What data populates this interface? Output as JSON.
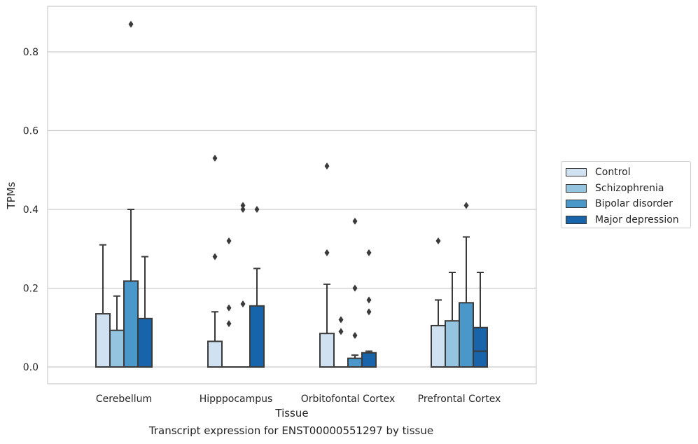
{
  "caption": "Transcript expression for ENST00000551297 by tissue",
  "chart_data": {
    "type": "box",
    "xlabel": "Tissue",
    "ylabel": "TPMs",
    "ylim": [
      -0.04,
      0.92
    ],
    "yticks": [
      0.0,
      0.2,
      0.4,
      0.6,
      0.8
    ],
    "ytick_labels": [
      "0.0",
      "0.2",
      "0.4",
      "0.6",
      "0.8"
    ],
    "grid": "horizontal",
    "legend_position": "right",
    "categories": [
      "Cerebellum",
      "Hipppocampus",
      "Orbitofontal Cortex",
      "Prefrontal Cortex"
    ],
    "series": [
      {
        "name": "Control",
        "color": "#d0e1f2",
        "boxes": [
          {
            "q1": 0.0,
            "median": 0.0,
            "q3": 0.135,
            "whisker_low": 0.0,
            "whisker_high": 0.31,
            "outliers": []
          },
          {
            "q1": 0.0,
            "median": 0.0,
            "q3": 0.065,
            "whisker_low": 0.0,
            "whisker_high": 0.14,
            "outliers": [
              0.28,
              0.53
            ]
          },
          {
            "q1": 0.0,
            "median": 0.0,
            "q3": 0.085,
            "whisker_low": 0.0,
            "whisker_high": 0.21,
            "outliers": [
              0.29,
              0.51
            ]
          },
          {
            "q1": 0.0,
            "median": 0.0,
            "q3": 0.105,
            "whisker_low": 0.0,
            "whisker_high": 0.17,
            "outliers": [
              0.32
            ]
          }
        ]
      },
      {
        "name": "Schizophrenia",
        "color": "#94c4df",
        "boxes": [
          {
            "q1": 0.0,
            "median": 0.0,
            "q3": 0.093,
            "whisker_low": 0.0,
            "whisker_high": 0.18,
            "outliers": []
          },
          {
            "q1": 0.0,
            "median": 0.0,
            "q3": 0.0,
            "whisker_low": 0.0,
            "whisker_high": 0.0,
            "outliers": [
              0.11,
              0.15,
              0.32
            ]
          },
          {
            "q1": 0.0,
            "median": 0.0,
            "q3": 0.0,
            "whisker_low": 0.0,
            "whisker_high": 0.0,
            "outliers": [
              0.09,
              0.12
            ]
          },
          {
            "q1": 0.0,
            "median": 0.0,
            "q3": 0.117,
            "whisker_low": 0.0,
            "whisker_high": 0.24,
            "outliers": []
          }
        ]
      },
      {
        "name": "Bipolar disorder",
        "color": "#4a98c9",
        "boxes": [
          {
            "q1": 0.0,
            "median": 0.0,
            "q3": 0.218,
            "whisker_low": 0.0,
            "whisker_high": 0.4,
            "outliers": [
              0.87
            ]
          },
          {
            "q1": 0.0,
            "median": 0.0,
            "q3": 0.0,
            "whisker_low": 0.0,
            "whisker_high": 0.0,
            "outliers": [
              0.16,
              0.4,
              0.41
            ]
          },
          {
            "q1": 0.0,
            "median": 0.0,
            "q3": 0.022,
            "whisker_low": 0.0,
            "whisker_high": 0.03,
            "outliers": [
              0.08,
              0.2,
              0.37
            ]
          },
          {
            "q1": 0.0,
            "median": 0.0,
            "q3": 0.163,
            "whisker_low": 0.0,
            "whisker_high": 0.33,
            "outliers": [
              0.41
            ]
          }
        ]
      },
      {
        "name": "Major depression",
        "color": "#1764ab",
        "boxes": [
          {
            "q1": 0.0,
            "median": 0.0,
            "q3": 0.123,
            "whisker_low": 0.0,
            "whisker_high": 0.28,
            "outliers": []
          },
          {
            "q1": 0.0,
            "median": 0.0,
            "q3": 0.155,
            "whisker_low": 0.0,
            "whisker_high": 0.25,
            "outliers": [
              0.4
            ]
          },
          {
            "q1": 0.0,
            "median": 0.0,
            "q3": 0.036,
            "whisker_low": 0.0,
            "whisker_high": 0.04,
            "outliers": [
              0.14,
              0.17,
              0.29
            ]
          },
          {
            "q1": 0.0,
            "median": 0.04,
            "q3": 0.1,
            "whisker_low": 0.0,
            "whisker_high": 0.24,
            "outliers": []
          }
        ]
      }
    ]
  }
}
